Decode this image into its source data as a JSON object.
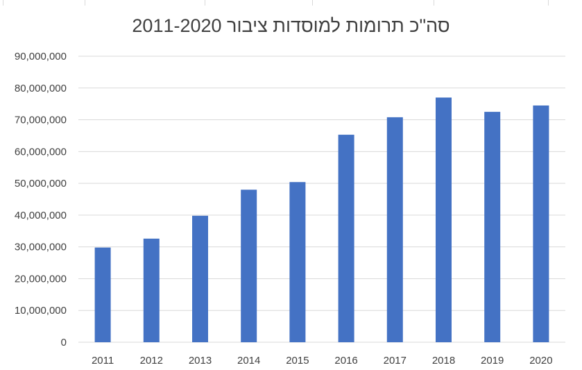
{
  "chart_data": {
    "type": "bar",
    "title": "סה\"כ תרומות למוסדות ציבור 2011-2020",
    "xlabel": "",
    "ylabel": "",
    "categories": [
      "2011",
      "2012",
      "2013",
      "2014",
      "2015",
      "2016",
      "2017",
      "2018",
      "2019",
      "2020"
    ],
    "values": [
      29800000,
      32600000,
      39800000,
      48000000,
      50400000,
      65300000,
      70800000,
      77000000,
      72500000,
      74500000
    ],
    "ylim": [
      0,
      90000000
    ],
    "y_ticks": [
      "0",
      "10,000,000",
      "20,000,000",
      "30,000,000",
      "40,000,000",
      "50,000,000",
      "60,000,000",
      "70,000,000",
      "80,000,000",
      "90,000,000"
    ],
    "y_tick_values": [
      0,
      10000000,
      20000000,
      30000000,
      40000000,
      50000000,
      60000000,
      70000000,
      80000000,
      90000000
    ],
    "grid": true,
    "legend": "none",
    "bar_color": "#4472C4",
    "grid_color": "#d9d9d9",
    "text_color": "#404040"
  }
}
